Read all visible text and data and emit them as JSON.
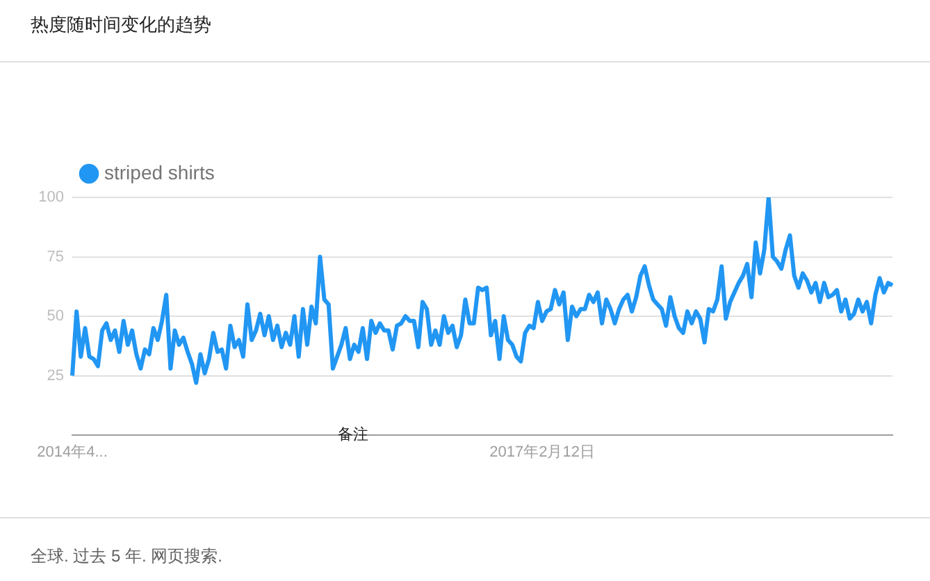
{
  "chart_data": {
    "type": "line",
    "title": "热度随时间变化的趋势",
    "categories": [
      "2014年4...",
      null,
      null,
      null,
      null,
      null,
      null,
      null,
      null,
      null,
      null,
      null,
      null,
      null,
      null,
      null,
      null,
      null,
      null,
      null,
      null,
      null,
      null,
      null,
      null,
      null,
      null,
      null,
      null,
      null,
      null,
      null,
      null,
      null,
      null,
      null,
      null,
      null,
      null,
      null,
      null,
      null,
      null,
      null,
      null,
      null,
      null,
      null,
      null,
      null,
      null,
      null,
      null,
      null,
      null,
      null,
      null,
      null,
      null,
      null,
      null,
      null,
      null,
      null,
      null,
      null,
      null,
      null,
      null,
      null,
      null,
      null,
      null,
      null,
      null,
      null,
      null,
      null,
      null,
      null,
      null,
      null,
      null,
      null,
      null,
      null,
      null,
      null,
      null,
      null,
      null,
      null,
      null,
      null,
      null,
      null,
      null,
      null,
      null,
      null,
      null,
      null,
      null,
      null,
      null,
      null,
      null,
      null,
      null,
      null,
      "2017年2月12日",
      null,
      null,
      null,
      null,
      null,
      null,
      null,
      null,
      null,
      null,
      null,
      null,
      null,
      null,
      null,
      null,
      null,
      null,
      null,
      null,
      null,
      null,
      null,
      null,
      null,
      null,
      null,
      null,
      null,
      null,
      null,
      null,
      null,
      null,
      null,
      null,
      null,
      null,
      null,
      null,
      null,
      null,
      null,
      null,
      null,
      null,
      null,
      null,
      null,
      null,
      null,
      null,
      null,
      null,
      null,
      null,
      null,
      null,
      null,
      null,
      null,
      null,
      null,
      null,
      null,
      null,
      null,
      null,
      null,
      null,
      null,
      null,
      null,
      null,
      null,
      null,
      null,
      null,
      null,
      null,
      null,
      null
    ],
    "series": [
      {
        "name": "striped shirts",
        "color": "#2196f3",
        "values": [
          25,
          52,
          33,
          45,
          33,
          32,
          29,
          44,
          47,
          40,
          44,
          35,
          48,
          38,
          44,
          34,
          28,
          36,
          34,
          45,
          40,
          48,
          59,
          28,
          44,
          38,
          41,
          35,
          30,
          22,
          34,
          26,
          32,
          43,
          35,
          36,
          28,
          46,
          37,
          40,
          33,
          55,
          40,
          44,
          51,
          42,
          50,
          40,
          46,
          37,
          43,
          38,
          50,
          33,
          53,
          38,
          54,
          47,
          75,
          57,
          55,
          28,
          33,
          38,
          45,
          32,
          38,
          35,
          45,
          32,
          48,
          43,
          47,
          44,
          44,
          36,
          46,
          47,
          50,
          48,
          48,
          37,
          56,
          53,
          38,
          44,
          38,
          50,
          43,
          46,
          37,
          42,
          57,
          47,
          47,
          62,
          61,
          62,
          42,
          48,
          32,
          50,
          40,
          38,
          33,
          31,
          43,
          46,
          45,
          56,
          48,
          52,
          53,
          61,
          55,
          60,
          40,
          54,
          50,
          53,
          53,
          59,
          56,
          60,
          47,
          57,
          53,
          47,
          53,
          57,
          59,
          52,
          58,
          67,
          71,
          63,
          57,
          55,
          53,
          46,
          58,
          50,
          45,
          43,
          52,
          47,
          52,
          49,
          39,
          53,
          52,
          57,
          71,
          49,
          56,
          60,
          64,
          67,
          72,
          58,
          81,
          68,
          78,
          100,
          75,
          73,
          70,
          78,
          84,
          67,
          62,
          68,
          65,
          60,
          64,
          56,
          64,
          58,
          59,
          61,
          52,
          57,
          49,
          51,
          57,
          52,
          56,
          47,
          59,
          66,
          60,
          64,
          63
        ]
      }
    ],
    "ylim": [
      0,
      100
    ],
    "yticks": [
      25,
      50,
      75,
      100
    ],
    "grid": "y",
    "legend": "top left",
    "marker": "none",
    "line_style": "solid",
    "annotations": [
      "备注",
      "全球. 过去 5 年. 网页搜索."
    ]
  }
}
